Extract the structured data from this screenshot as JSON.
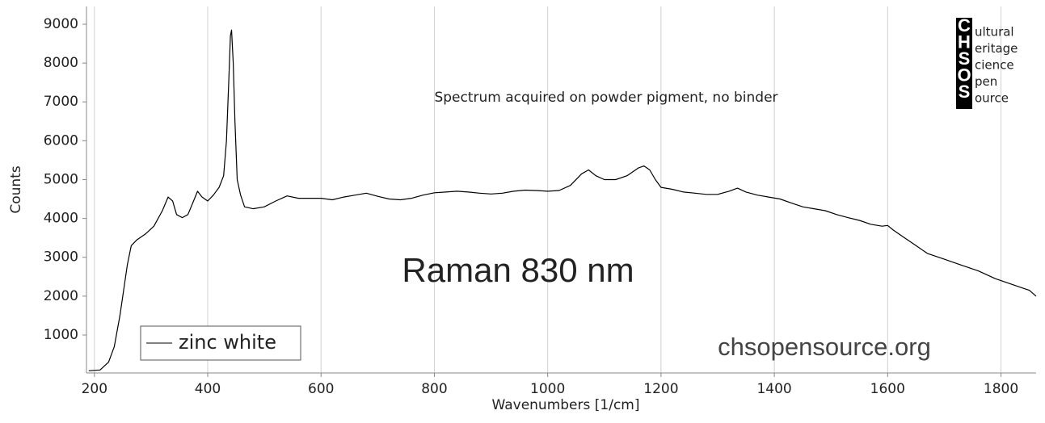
{
  "chart_data": {
    "type": "line",
    "x_label": "Wavenumbers [1/cm]",
    "y_label": "Counts",
    "annotations": [
      "Spectrum acquired on powder pigment, no binder",
      "Raman 830 nm",
      "chsopensource.org"
    ],
    "logo": {
      "letters": [
        "C",
        "H",
        "S",
        "O",
        "S"
      ],
      "words": [
        "ultural",
        "eritage",
        "cience",
        "pen",
        "ource"
      ]
    },
    "xlim": [
      186,
      1862
    ],
    "ylim": [
      23,
      9457
    ],
    "xticks": [
      200,
      400,
      600,
      800,
      1000,
      1200,
      1400,
      1600,
      1800
    ],
    "yticks": [
      1000,
      2000,
      3000,
      4000,
      5000,
      6000,
      7000,
      8000,
      9000
    ],
    "grid": "x",
    "legend": "lower left",
    "series": [
      {
        "name": "zinc white",
        "color": "#000000",
        "x": [
          190,
          210,
          225,
          235,
          245,
          250,
          258,
          265,
          275,
          290,
          305,
          320,
          330,
          338,
          345,
          355,
          365,
          375,
          382,
          390,
          400,
          410,
          420,
          428,
          433,
          437,
          440,
          442,
          445,
          448,
          452,
          458,
          465,
          480,
          500,
          520,
          540,
          560,
          580,
          600,
          620,
          640,
          660,
          680,
          700,
          720,
          740,
          760,
          780,
          800,
          820,
          840,
          860,
          880,
          900,
          920,
          940,
          960,
          980,
          1000,
          1020,
          1040,
          1060,
          1072,
          1085,
          1100,
          1120,
          1140,
          1160,
          1170,
          1180,
          1190,
          1200,
          1220,
          1240,
          1260,
          1280,
          1300,
          1320,
          1335,
          1350,
          1370,
          1390,
          1410,
          1430,
          1450,
          1470,
          1490,
          1510,
          1530,
          1550,
          1570,
          1590,
          1600,
          1610,
          1630,
          1650,
          1670,
          1700,
          1730,
          1760,
          1790,
          1820,
          1850,
          1862
        ],
        "values": [
          80,
          100,
          300,
          700,
          1500,
          2000,
          2800,
          3300,
          3450,
          3600,
          3800,
          4200,
          4550,
          4450,
          4100,
          4020,
          4100,
          4450,
          4700,
          4550,
          4450,
          4600,
          4800,
          5100,
          6000,
          7500,
          8700,
          8850,
          8000,
          6500,
          5000,
          4600,
          4300,
          4250,
          4300,
          4450,
          4580,
          4520,
          4520,
          4520,
          4480,
          4550,
          4600,
          4650,
          4570,
          4500,
          4480,
          4520,
          4600,
          4660,
          4680,
          4700,
          4680,
          4650,
          4630,
          4650,
          4700,
          4730,
          4720,
          4700,
          4720,
          4850,
          5150,
          5250,
          5100,
          5000,
          5000,
          5100,
          5300,
          5350,
          5250,
          5000,
          4800,
          4750,
          4680,
          4650,
          4620,
          4620,
          4700,
          4780,
          4680,
          4600,
          4550,
          4500,
          4400,
          4300,
          4250,
          4200,
          4100,
          4020,
          3950,
          3850,
          3800,
          3820,
          3700,
          3500,
          3300,
          3100,
          2950,
          2800,
          2650,
          2450,
          2300,
          2150,
          2000
        ]
      }
    ]
  }
}
